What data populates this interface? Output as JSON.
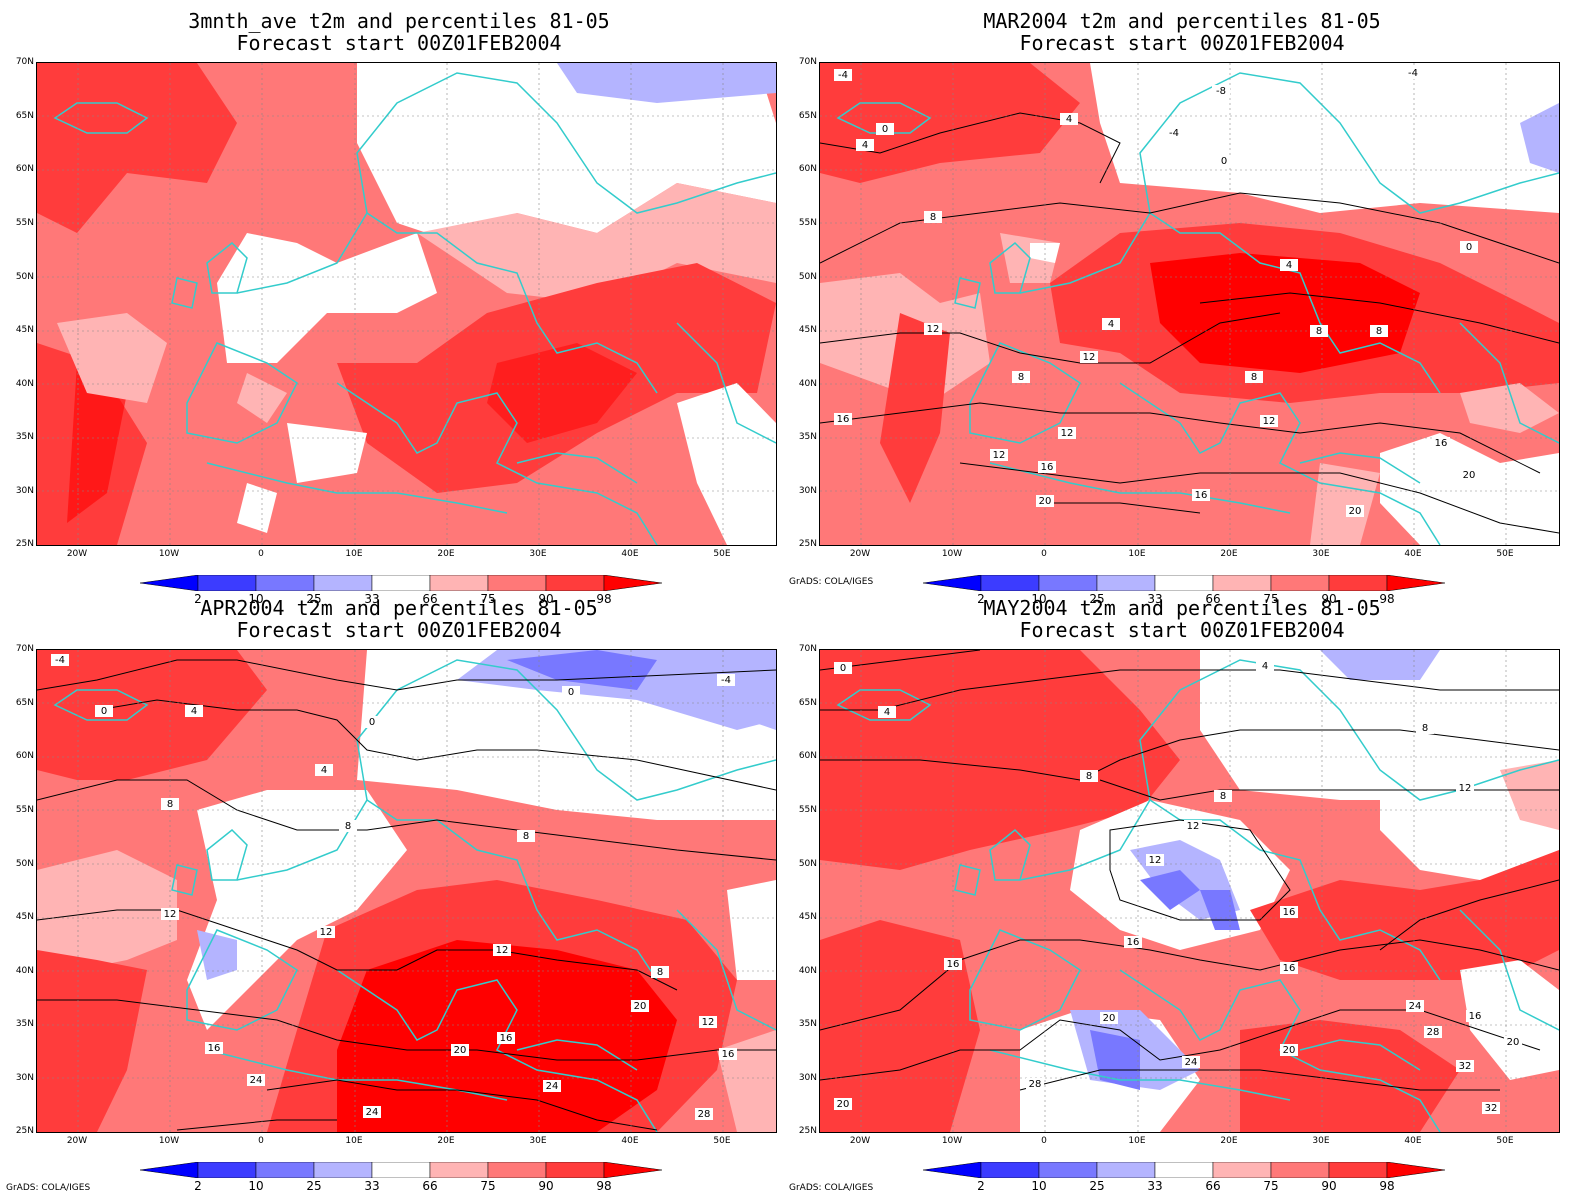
{
  "panels": [
    {
      "title1": "3mnth_ave t2m and percentiles 81-05",
      "title2": "Forecast start 00Z01FEB2004"
    },
    {
      "title1": "MAR2004 t2m and percentiles 81-05",
      "title2": "Forecast start 00Z01FEB2004"
    },
    {
      "title1": "APR2004 t2m and percentiles 81-05",
      "title2": "Forecast start 00Z01FEB2004"
    },
    {
      "title1": "MAY2004 t2m and percentiles 81-05",
      "title2": "Forecast start 00Z01FEB2004"
    }
  ],
  "lat_labels": [
    "70N",
    "65N",
    "60N",
    "55N",
    "50N",
    "45N",
    "40N",
    "35N",
    "30N",
    "25N"
  ],
  "lon_labels": [
    "20W",
    "10W",
    "0",
    "10E",
    "20E",
    "30E",
    "40E",
    "50E"
  ],
  "colorbar": {
    "labels": [
      "2",
      "10",
      "25",
      "33",
      "66",
      "75",
      "90",
      "98"
    ],
    "colors": [
      "#0000ff",
      "#3c3cff",
      "#7878ff",
      "#b4b4ff",
      "#ffffff",
      "#ffb4b4",
      "#ff7878",
      "#ff3c3c",
      "#ff0000"
    ]
  },
  "credit": "GrADS: COLA/IGES",
  "colors": {
    "coastline": "#33cccc",
    "contour": "#000000"
  },
  "contours": {
    "p1": [],
    "p2": [
      "-4",
      "-8",
      "-4",
      "0",
      "4",
      "4",
      "0",
      "-4",
      "8",
      "0",
      "4",
      "12",
      "8",
      "12",
      "16",
      "12",
      "12",
      "4",
      "8",
      "8",
      "8",
      "12",
      "16",
      "20",
      "16",
      "20",
      "16",
      "20"
    ],
    "p3": [
      "-4",
      "0",
      "4",
      "0",
      "0",
      "-4",
      "4",
      "8",
      "8",
      "8",
      "12",
      "12",
      "12",
      "16",
      "20",
      "16",
      "24",
      "24",
      "20",
      "24",
      "12",
      "16",
      "28",
      "8"
    ],
    "p4": [
      "0",
      "4",
      "4",
      "8",
      "8",
      "8",
      "12",
      "12",
      "12",
      "16",
      "16",
      "16",
      "16",
      "20",
      "20",
      "24",
      "24",
      "28",
      "28",
      "32",
      "16",
      "20",
      "20",
      "32"
    ]
  }
}
